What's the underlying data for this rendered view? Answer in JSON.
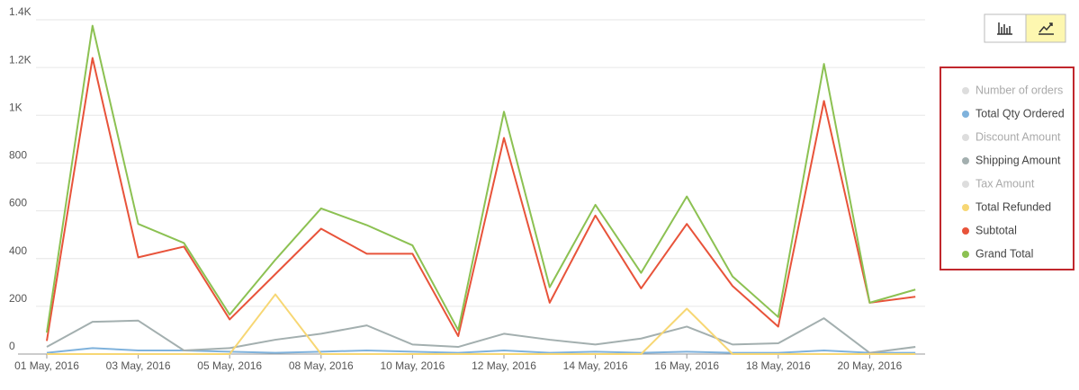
{
  "chart_data": {
    "type": "line",
    "categories": [
      "01 May, 2016",
      null,
      "03 May, 2016",
      null,
      "05 May, 2016",
      null,
      "08 May, 2016",
      null,
      "10 May, 2016",
      null,
      "12 May, 2016",
      null,
      "14 May, 2016",
      null,
      "16 May, 2016",
      null,
      "18 May, 2016",
      null,
      "20 May, 2016",
      null
    ],
    "ylim": [
      0,
      1400
    ],
    "yticks": [
      0,
      200,
      400,
      600,
      800,
      {
        "value": 1000,
        "label": "1K"
      },
      {
        "value": 1200,
        "label": "1.2K"
      },
      {
        "value": 1400,
        "label": "1.4K"
      }
    ],
    "grid": true,
    "legend": "right",
    "series": [
      {
        "name": "Number of orders",
        "color": "#d9d9d9",
        "visible": false
      },
      {
        "name": "Total Qty Ordered",
        "color": "#7fb2dc",
        "visible": true,
        "values": [
          5,
          25,
          15,
          15,
          10,
          5,
          10,
          15,
          10,
          5,
          15,
          5,
          10,
          5,
          10,
          5,
          5,
          15,
          5,
          5
        ]
      },
      {
        "name": "Discount Amount",
        "color": "#d9d9d9",
        "visible": false
      },
      {
        "name": "Shipping Amount",
        "color": "#a3afaf",
        "visible": true,
        "values": [
          30,
          135,
          140,
          15,
          25,
          60,
          85,
          120,
          40,
          30,
          85,
          60,
          40,
          65,
          115,
          40,
          45,
          150,
          5,
          30
        ]
      },
      {
        "name": "Tax Amount",
        "color": "#d9d9d9",
        "visible": false
      },
      {
        "name": "Total Refunded",
        "color": "#f7d774",
        "visible": true,
        "values": [
          0,
          0,
          0,
          0,
          0,
          250,
          0,
          0,
          0,
          0,
          0,
          0,
          0,
          0,
          190,
          0,
          0,
          0,
          0,
          0
        ]
      },
      {
        "name": "Subtotal",
        "color": "#e8533a",
        "visible": true,
        "values": [
          55,
          1240,
          405,
          450,
          145,
          335,
          525,
          420,
          420,
          75,
          905,
          215,
          580,
          275,
          545,
          285,
          115,
          1060,
          215,
          240
        ]
      },
      {
        "name": "Grand Total",
        "color": "#8cc152",
        "visible": true,
        "values": [
          90,
          1375,
          545,
          465,
          165,
          395,
          610,
          540,
          455,
          100,
          1015,
          280,
          625,
          340,
          660,
          325,
          155,
          1215,
          215,
          270
        ]
      }
    ]
  }
}
